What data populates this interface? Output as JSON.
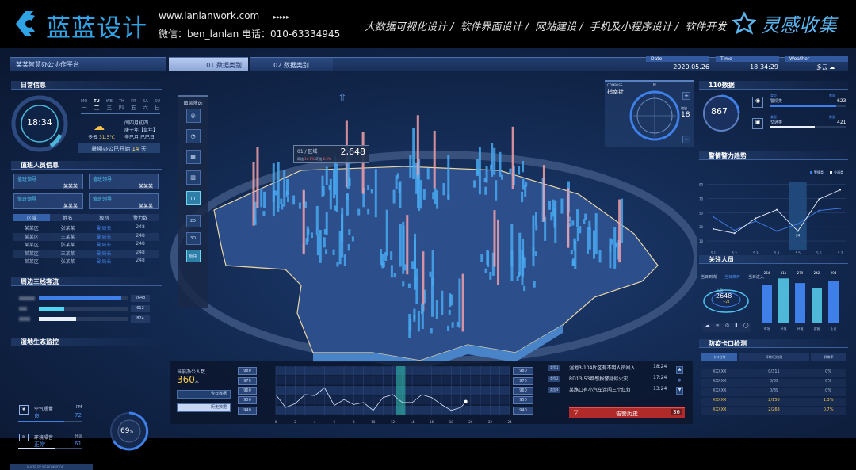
{
  "header": {
    "logo_text": "蓝蓝设计",
    "website": "www.lanlanwork.com",
    "arrows": "▸▸▸▸▸",
    "contact": "微信：ben_lanlan    电话：010-63334945",
    "nav": [
      "大数据可视化设计",
      "/",
      "软件界面设计",
      "/",
      "网站建设",
      "/",
      "手机及小程序设计",
      "/",
      "软件开发"
    ],
    "brand": "灵感收集"
  },
  "topbar": {
    "title": "某某智慧办公协作平台",
    "tabs": [
      {
        "num": "01",
        "label": "数据类别"
      },
      {
        "num": "02",
        "label": "数据类别"
      }
    ],
    "date_label": "Date",
    "date": "2020.05.26",
    "time_label": "Time",
    "time": "18:34:29",
    "weather_label": "Weather",
    "weather": "多云"
  },
  "daily": {
    "title": "日常信息",
    "clock": "18:34",
    "weekdays": [
      [
        "MO",
        "一"
      ],
      [
        "TU",
        "二"
      ],
      [
        "WE",
        "三"
      ],
      [
        "TH",
        "四"
      ],
      [
        "FR",
        "五"
      ],
      [
        "SA",
        "六"
      ],
      [
        "SU",
        "日"
      ]
    ],
    "selected_day": 1,
    "weather": "多云",
    "temp": "31.5℃",
    "lunar": [
      "闰四月初四",
      "庚子年【鼠年】",
      "辛巳月 己巳日"
    ],
    "banner": "暑期办公已开始",
    "days": "14",
    "days_unit": "天"
  },
  "duty": {
    "title": "值班人员信息",
    "cards": [
      {
        "role": "值班领导",
        "name": "某某某"
      },
      {
        "role": "值班领导",
        "name": "某某某"
      },
      {
        "role": "值班领导",
        "name": "某某某"
      },
      {
        "role": "值班领导",
        "name": "某某某"
      }
    ],
    "headers": [
      "区域",
      "姓名",
      "级别",
      "警力数"
    ],
    "rows": [
      [
        "某某区",
        "张某某",
        "副局长",
        "248"
      ],
      [
        "某某区",
        "王某某",
        "副局长",
        "248"
      ],
      [
        "某某区",
        "张某某",
        "副局长",
        "248"
      ],
      [
        "某某区",
        "王某某",
        "副局长",
        "248"
      ],
      [
        "某某区",
        "张某某",
        "副局长",
        "248"
      ]
    ]
  },
  "flow": {
    "title": "周边三线客流",
    "items": [
      {
        "value": "2648",
        "level": 0.92,
        "color": "#3f7fe8"
      },
      {
        "value": "612",
        "level": 0.28,
        "color": "#4fd6f0"
      },
      {
        "value": "824",
        "level": 0.42,
        "color": "#e8eefa"
      }
    ]
  },
  "eco": {
    "title": "湿地生态监控",
    "air_label": "空气质量",
    "air_value": "良",
    "air_unit": "PM",
    "air_num": "72",
    "noise_label": "环境噪音",
    "noise_value": "正常",
    "noise_unit": "分贝",
    "noise_num": "61",
    "gauge": "69",
    "gauge_unit": "%"
  },
  "footer": "MADE BY NEHOMMCOK",
  "layers": {
    "title": "图层筛选",
    "buttons": [
      "◎",
      "◔",
      "▦",
      "▥",
      "ılı"
    ],
    "modes": [
      "2D",
      "3D",
      "板块"
    ]
  },
  "tooltip": {
    "label": "01 / 区域一",
    "value": "2,648",
    "yoy": "同比",
    "yoy_val": "16.1%",
    "mom": "环比",
    "mom_val": "6.2%"
  },
  "compass": {
    "en": "COMPASS",
    "title": "指南针",
    "n": "N",
    "zoom_label": "缩放",
    "zoom": "18",
    "plus": "+",
    "minus": "−"
  },
  "office": {
    "title": "当前办公人数",
    "value": "360",
    "unit": "人",
    "today": "今日数据",
    "history": "历史数据"
  },
  "chart_data": [
    {
      "type": "line",
      "title": "",
      "yticks": [
        "980",
        "970",
        "960",
        "950",
        "940"
      ],
      "ylim": [
        935,
        985
      ],
      "xticks": [
        "0",
        "2",
        "4",
        "6",
        "8",
        "10",
        "12",
        "14",
        "16",
        "18",
        "20",
        "22",
        "24"
      ],
      "xlim": [
        0,
        24
      ],
      "x": [
        0,
        1,
        2,
        3,
        4,
        5,
        6,
        7,
        8,
        9,
        10,
        11,
        12,
        13,
        14,
        15,
        16,
        17,
        18,
        19,
        19.5
      ],
      "values": [
        956,
        943,
        947,
        956,
        955,
        963,
        945,
        951,
        946,
        948,
        940,
        953,
        956,
        948,
        948,
        956,
        953,
        946,
        940,
        943,
        949
      ],
      "highlight_range": [
        12.3,
        13.3
      ]
    },
    {
      "type": "line",
      "title": "",
      "legend": [
        "警情类",
        "交通类"
      ],
      "legend_position": "top-right",
      "categories": [
        "5.1",
        "5.2",
        "5.3",
        "5.4",
        "5.5",
        "5.6",
        "5.7"
      ],
      "yticks": [
        "90",
        "70",
        "50",
        "30",
        "10"
      ],
      "ylim": [
        0,
        95
      ],
      "series": [
        {
          "name": "警情类",
          "values": [
            44,
            25,
            38,
            24,
            34,
            53,
            56
          ],
          "color": "#3f7fe8"
        },
        {
          "name": "交通类",
          "values": [
            27,
            21,
            42,
            54,
            24,
            69,
            82
          ],
          "color": "#e8eefa"
        }
      ],
      "highlight": "5.5",
      "highlight_label": "24"
    },
    {
      "type": "bar",
      "title": "",
      "categories": [
        "市场",
        "环境",
        "环境",
        "游客",
        "上访"
      ],
      "values": [
        264,
        311,
        279,
        242,
        294
      ],
      "colors": [
        "#3f7fe8",
        "#4fb8d8",
        "#3f7fe8",
        "#4fb8d8",
        "#3f7fe8"
      ]
    }
  ],
  "alerts": {
    "items": [
      {
        "tag": "类型1",
        "text": "湿地3-104片区有不明人员闯入",
        "time": "18:24"
      },
      {
        "tag": "类型2",
        "text": "RD13-53烟感报警疑似火灾",
        "time": "17:24"
      },
      {
        "tag": "类型4",
        "text": "某路口有小汽车连闯三个红灯",
        "time": "13:24"
      }
    ],
    "history": "告警历史",
    "count": "36"
  },
  "d110": {
    "title": "110数据",
    "total": "867",
    "items": [
      {
        "type_label": "类型",
        "name": "警情类",
        "num_label": "数量",
        "value": "623",
        "level": 0.86
      },
      {
        "type_label": "类型",
        "name": "交通类",
        "num_label": "数量",
        "value": "421",
        "level": 0.58
      }
    ]
  },
  "trend": {
    "title": "警情警力趋势"
  },
  "focus": {
    "title": "关注人员",
    "tabs": [
      "当日到岗",
      "当日离开",
      "当日进入"
    ],
    "ring_label": "人员",
    "ring_value": "2648",
    "ring_delta": "+24"
  },
  "checkpoint": {
    "title": "防疫卡口检测",
    "headers": [
      "卡口名称",
      "异常/已检测",
      "异常率"
    ],
    "rows": [
      [
        "XXXXX",
        "0/311",
        "0%"
      ],
      [
        "XXXXX",
        "0/89",
        "0%"
      ],
      [
        "XXXXX",
        "0/89",
        "0%"
      ],
      [
        "XXXXX",
        "2/156",
        "1.3%"
      ],
      [
        "XXXXX",
        "2/268",
        "0.7%"
      ]
    ]
  }
}
